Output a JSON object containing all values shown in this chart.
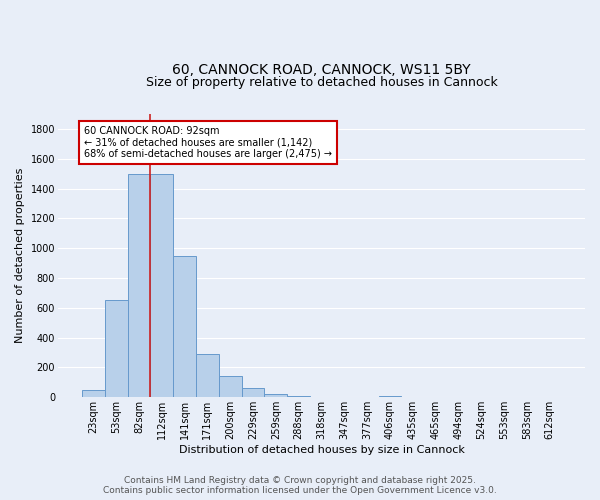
{
  "title_line1": "60, CANNOCK ROAD, CANNOCK, WS11 5BY",
  "title_line2": "Size of property relative to detached houses in Cannock",
  "xlabel": "Distribution of detached houses by size in Cannock",
  "ylabel": "Number of detached properties",
  "categories": [
    "23sqm",
    "53sqm",
    "82sqm",
    "112sqm",
    "141sqm",
    "171sqm",
    "200sqm",
    "229sqm",
    "259sqm",
    "288sqm",
    "318sqm",
    "347sqm",
    "377sqm",
    "406sqm",
    "435sqm",
    "465sqm",
    "494sqm",
    "524sqm",
    "553sqm",
    "583sqm",
    "612sqm"
  ],
  "values": [
    50,
    650,
    1500,
    1500,
    950,
    290,
    140,
    65,
    20,
    10,
    5,
    5,
    5,
    10,
    0,
    0,
    0,
    0,
    0,
    0,
    0
  ],
  "bar_color": "#b8d0ea",
  "bar_edge_color": "#6699cc",
  "bg_color": "#e8eef8",
  "grid_color": "#ffffff",
  "vline_color": "#cc2222",
  "annotation_text": "60 CANNOCK ROAD: 92sqm\n← 31% of detached houses are smaller (1,142)\n68% of semi-detached houses are larger (2,475) →",
  "annotation_box_color": "#ffffff",
  "annotation_box_edge": "#cc0000",
  "footer_text": "Contains HM Land Registry data © Crown copyright and database right 2025.\nContains public sector information licensed under the Open Government Licence v3.0.",
  "ylim": [
    0,
    1900
  ],
  "yticks": [
    0,
    200,
    400,
    600,
    800,
    1000,
    1200,
    1400,
    1600,
    1800
  ],
  "title_fontsize": 10,
  "subtitle_fontsize": 9,
  "axis_label_fontsize": 8,
  "tick_fontsize": 7,
  "footer_fontsize": 6.5,
  "annot_fontsize": 7
}
